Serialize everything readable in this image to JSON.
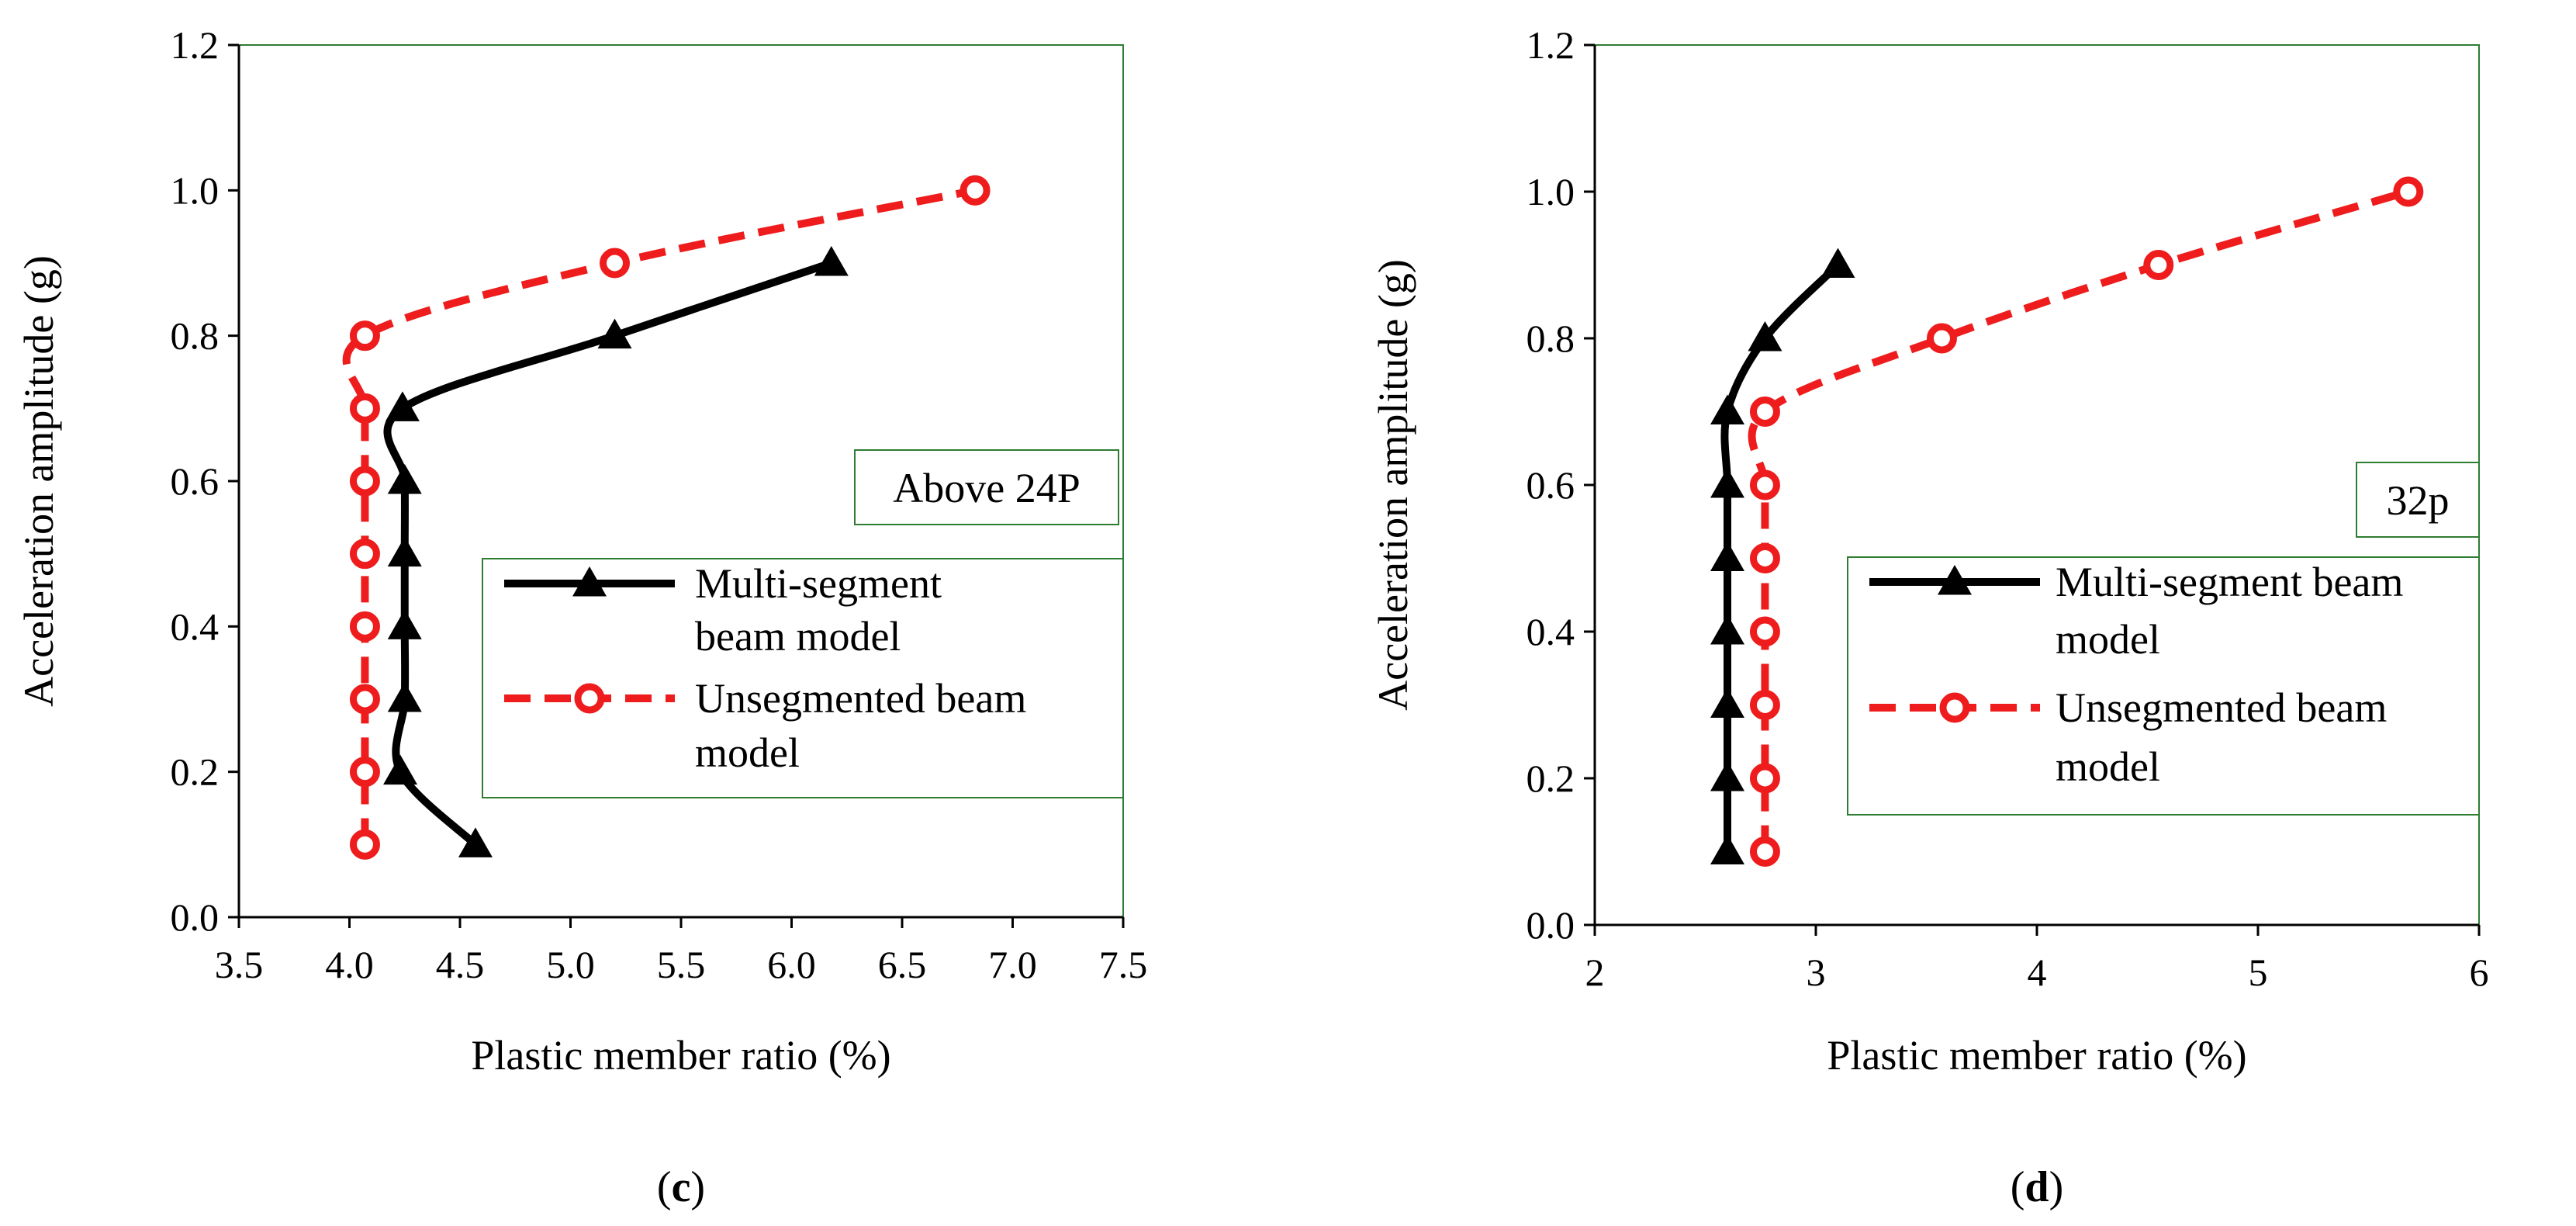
{
  "chart_data": [
    {
      "type": "line",
      "panel_label": "c",
      "title": "",
      "xlabel": "Plastic member ratio (%)",
      "ylabel": "Acceleration amplitude (g)",
      "xlim": [
        3.5,
        7.5
      ],
      "ylim": [
        0.0,
        1.2
      ],
      "xticks": [
        "3.5",
        "4.0",
        "4.5",
        "5.0",
        "5.5",
        "6.0",
        "6.5",
        "7.0",
        "7.5"
      ],
      "yticks": [
        "0.0",
        "0.2",
        "0.4",
        "0.6",
        "0.8",
        "1.0",
        "1.2"
      ],
      "annotation": "Above 24P",
      "grid": false,
      "legend_position": "middle-right",
      "series": [
        {
          "name": "Multi-segment beam model",
          "legend_lines": [
            "Multi-segment",
            "beam model"
          ],
          "color": "#000000",
          "line_style": "solid",
          "marker": "triangle",
          "x": [
            4.57,
            4.23,
            4.25,
            4.25,
            4.25,
            4.25,
            4.24,
            5.2,
            6.18
          ],
          "y": [
            0.1,
            0.2,
            0.3,
            0.4,
            0.5,
            0.6,
            0.7,
            0.8,
            0.9
          ]
        },
        {
          "name": "Unsegmented beam model",
          "legend_lines": [
            "Unsegmented beam",
            "model"
          ],
          "color": "#ee1c1c",
          "line_style": "dashed",
          "marker": "circle-open",
          "x": [
            4.07,
            4.07,
            4.07,
            4.07,
            4.07,
            4.07,
            4.07,
            4.07,
            5.2,
            6.83
          ],
          "y": [
            0.1,
            0.2,
            0.3,
            0.4,
            0.5,
            0.6,
            0.7,
            0.8,
            0.9,
            1.0
          ]
        }
      ]
    },
    {
      "type": "line",
      "panel_label": "d",
      "title": "",
      "xlabel": "Plastic member ratio (%)",
      "ylabel": "Acceleration amplitude (g)",
      "xlim": [
        2,
        6
      ],
      "ylim": [
        0.0,
        1.2
      ],
      "xticks": [
        "2",
        "3",
        "4",
        "5",
        "6"
      ],
      "yticks": [
        "0.0",
        "0.2",
        "0.4",
        "0.6",
        "0.8",
        "1.0",
        "1.2"
      ],
      "annotation": "32p",
      "grid": false,
      "legend_position": "middle-right",
      "series": [
        {
          "name": "Multi-segment beam model",
          "legend_lines": [
            "Multi-segment beam",
            "model"
          ],
          "color": "#000000",
          "line_style": "solid",
          "marker": "triangle",
          "x": [
            2.6,
            2.6,
            2.6,
            2.6,
            2.6,
            2.6,
            2.6,
            2.77,
            3.1
          ],
          "y": [
            0.1,
            0.2,
            0.3,
            0.4,
            0.5,
            0.6,
            0.7,
            0.8,
            0.9
          ]
        },
        {
          "name": "Unsegmented beam model",
          "legend_lines": [
            "Unsegmented beam",
            "model"
          ],
          "color": "#ee1c1c",
          "line_style": "dashed",
          "marker": "circle-open",
          "x": [
            2.77,
            2.77,
            2.77,
            2.77,
            2.77,
            2.77,
            2.77,
            3.57,
            4.55,
            5.68
          ],
          "y": [
            0.1,
            0.2,
            0.3,
            0.4,
            0.5,
            0.6,
            0.7,
            0.8,
            0.9,
            1.0
          ]
        }
      ]
    }
  ]
}
